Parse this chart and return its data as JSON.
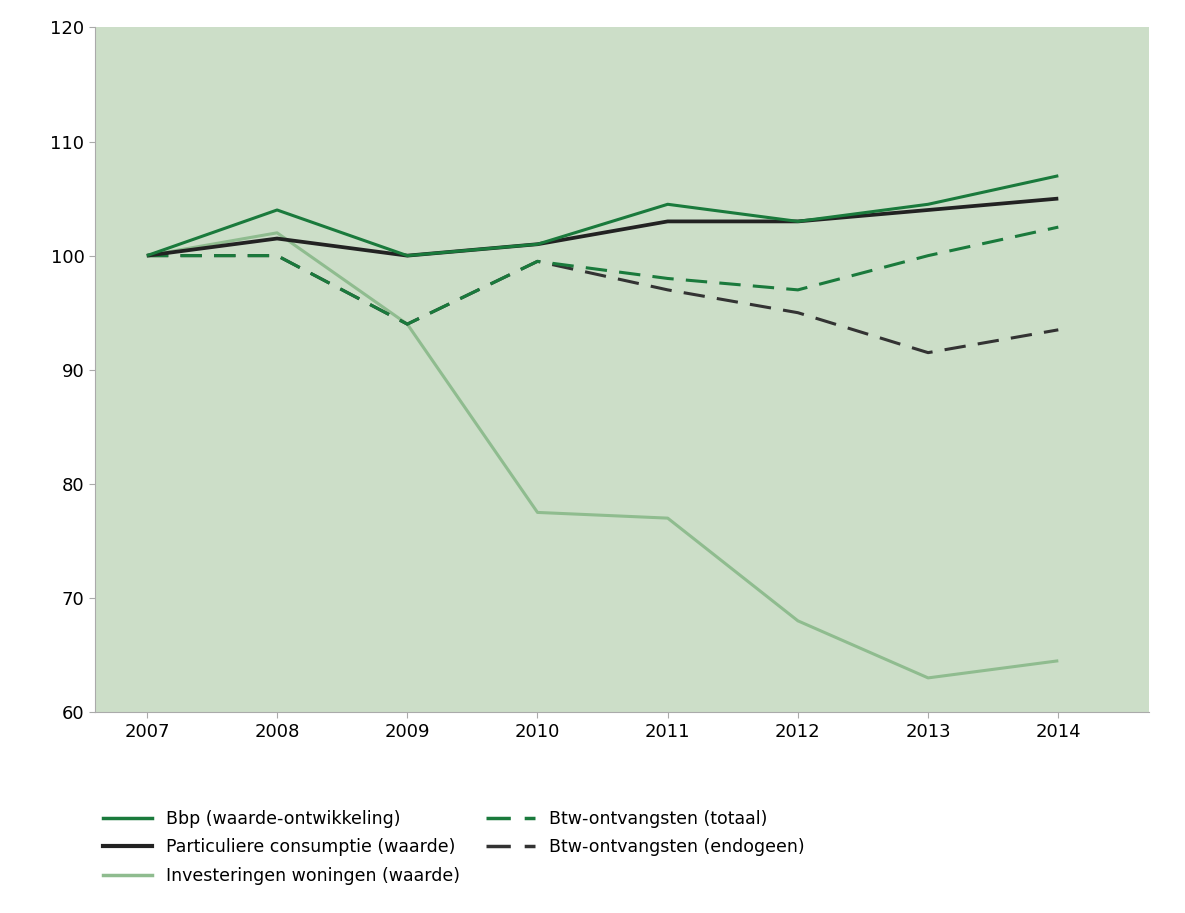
{
  "years": [
    2007,
    2008,
    2009,
    2010,
    2011,
    2012,
    2013,
    2014
  ],
  "bbp": [
    100,
    104,
    100,
    101,
    104.5,
    103,
    104.5,
    107
  ],
  "particuliere_consumptie": [
    100,
    101.5,
    100,
    101,
    103,
    103,
    104,
    105
  ],
  "investeringen_woningen": [
    100,
    102,
    94,
    77.5,
    77,
    68,
    63,
    64.5
  ],
  "btw_totaal": [
    100,
    100,
    94,
    99.5,
    98,
    97,
    100,
    102.5
  ],
  "btw_endogeen": [
    100,
    100,
    94,
    99.5,
    97,
    95,
    91.5,
    93.5
  ],
  "background_color": "#ccdec8",
  "fig_background": "#ffffff",
  "color_bbp": "#1a7a3c",
  "color_particuliere": "#222222",
  "color_investeringen": "#8fbc8f",
  "color_btw_totaal": "#1a7a3c",
  "color_btw_endogeen": "#333333",
  "ylim": [
    60,
    120
  ],
  "yticks": [
    60,
    70,
    80,
    90,
    100,
    110,
    120
  ],
  "xlim_left": 2006.6,
  "xlim_right": 2014.7,
  "linewidth": 2.2,
  "tick_fontsize": 13,
  "legend_fontsize": 12.5
}
